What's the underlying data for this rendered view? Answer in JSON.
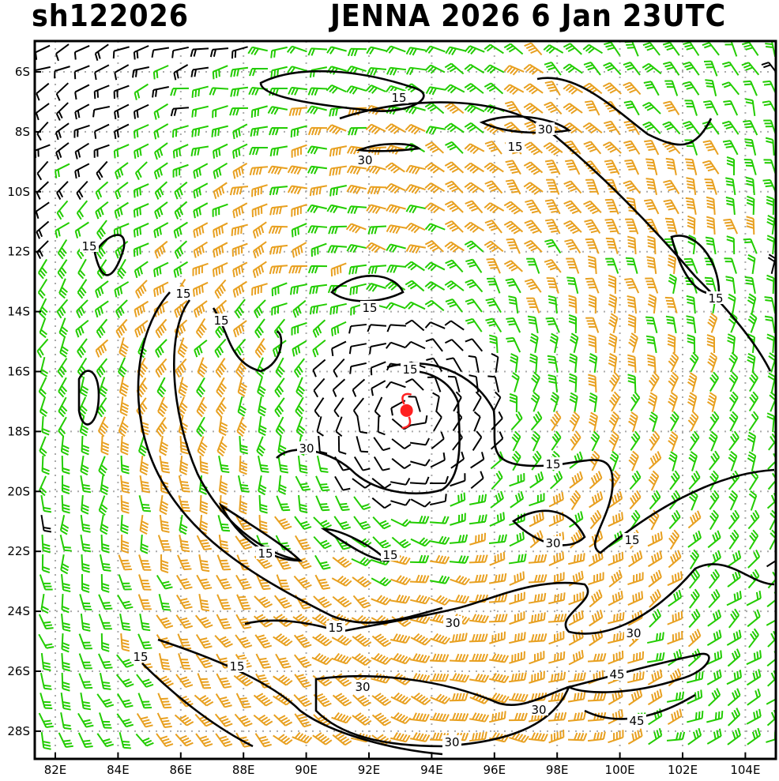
{
  "header": {
    "storm_id": "sh122026",
    "title": "JENNA 2026   6 Jan 23UTC"
  },
  "map": {
    "lat_labels": [
      "6S",
      "8S",
      "10S",
      "12S",
      "14S",
      "16S",
      "18S",
      "20S",
      "22S",
      "24S",
      "26S",
      "28S"
    ],
    "lon_labels": [
      "82E",
      "84E",
      "86E",
      "88E",
      "90E",
      "92E",
      "94E",
      "96E",
      "98E",
      "100E",
      "102E",
      "104E"
    ],
    "storm_center": {
      "lon": 93.2,
      "lat": -17.3
    },
    "contour_labels": [
      "15",
      "15",
      "30",
      "15",
      "30",
      "15",
      "15",
      "15",
      "15",
      "15",
      "15",
      "30",
      "15",
      "30",
      "15",
      "30",
      "30",
      "45",
      "30",
      "45",
      "15",
      "15",
      "30",
      "15",
      "30",
      "15"
    ],
    "colors": {
      "calm": "#000000",
      "moderate": "#22cc00",
      "strong": "#e8a020",
      "storm": "#ff2020"
    }
  }
}
